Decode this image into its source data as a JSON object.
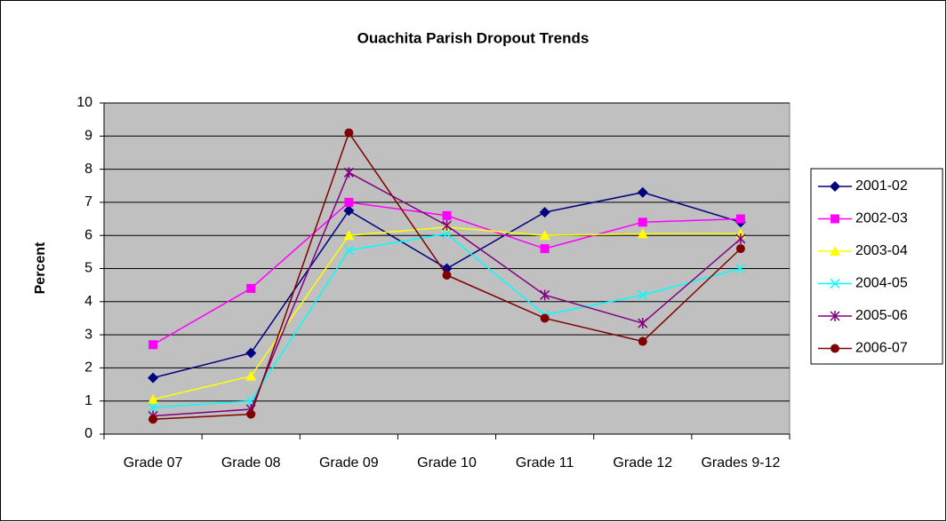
{
  "chart_data": {
    "type": "line",
    "title": "Ouachita Parish Dropout Trends",
    "y_label": "Percent",
    "categories": [
      "Grade 07",
      "Grade 08",
      "Grade 09",
      "Grade 10",
      "Grade 11",
      "Grade 12",
      "Grades 9-12"
    ],
    "ylim": [
      0,
      10
    ],
    "yticks": [
      0,
      1,
      2,
      3,
      4,
      5,
      6,
      7,
      8,
      9,
      10
    ],
    "grid": true,
    "legend": "right",
    "series": [
      {
        "name": "2001-02",
        "color": "#000080",
        "marker": "diamond",
        "values": [
          1.7,
          2.45,
          6.75,
          5.0,
          6.7,
          7.3,
          6.4
        ]
      },
      {
        "name": "2002-03",
        "color": "#ff00ff",
        "marker": "square",
        "values": [
          2.7,
          4.4,
          7.0,
          6.6,
          5.6,
          6.4,
          6.5
        ]
      },
      {
        "name": "2003-04",
        "color": "#ffff00",
        "marker": "triangle",
        "values": [
          1.05,
          1.75,
          6.0,
          6.25,
          6.0,
          6.05,
          6.05
        ]
      },
      {
        "name": "2004-05",
        "color": "#00ffff",
        "marker": "x",
        "values": [
          0.8,
          1.0,
          5.55,
          6.05,
          3.6,
          4.2,
          5.0
        ]
      },
      {
        "name": "2005-06",
        "color": "#800080",
        "marker": "star",
        "values": [
          0.55,
          0.75,
          7.9,
          6.3,
          4.2,
          3.35,
          5.9
        ]
      },
      {
        "name": "2006-07",
        "color": "#800000",
        "marker": "circle",
        "values": [
          0.45,
          0.6,
          9.1,
          4.8,
          3.5,
          2.8,
          5.6
        ]
      }
    ]
  }
}
